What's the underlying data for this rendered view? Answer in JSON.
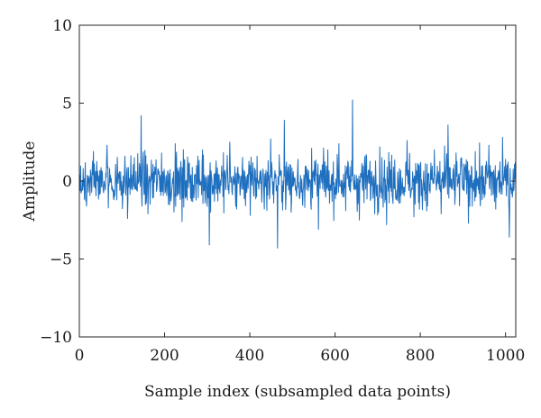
{
  "chart_data": {
    "type": "line",
    "title": "",
    "xlabel": "Sample index (subsampled data points)",
    "ylabel": "Amplitude",
    "xlim": [
      0,
      1024
    ],
    "ylim": [
      -10,
      10
    ],
    "x_ticks": [
      0,
      200,
      400,
      600,
      800,
      1000
    ],
    "x_tick_labels": [
      "0",
      "200",
      "400",
      "600",
      "800",
      "1000"
    ],
    "y_ticks": [
      -10,
      -5,
      0,
      5,
      10
    ],
    "y_tick_labels": [
      "−10",
      "−5",
      "0",
      "5",
      "10"
    ],
    "grid": false,
    "legend": "none",
    "series": [
      {
        "color": "#1f6fbf",
        "x_start": 1,
        "x_step": 16,
        "values": [
          0.4,
          -1.6,
          1.9,
          -0.8,
          2.3,
          -1.2,
          0.6,
          -2.4,
          1.5,
          4.2,
          -2.1,
          0.9,
          1.8,
          -1.5,
          2.4,
          -2.6,
          1.1,
          -0.6,
          2.0,
          -4.1,
          1.3,
          -1.0,
          2.5,
          -1.8,
          0.7,
          -2.2,
          1.6,
          -0.9,
          2.7,
          -4.3,
          3.9,
          -2.0,
          1.4,
          -1.7,
          2.1,
          -3.1,
          0.8,
          -1.3,
          2.4,
          -1.9,
          5.2,
          -2.5,
          1.7,
          -1.1,
          2.2,
          -2.8,
          0.9,
          -1.4,
          2.6,
          -2.3,
          1.2,
          -1.6,
          2.0,
          -2.1,
          3.6,
          -1.5,
          1.5,
          -2.7,
          1.9,
          -1.2,
          2.3,
          -1.8,
          2.8,
          -3.6
        ]
      }
    ]
  }
}
